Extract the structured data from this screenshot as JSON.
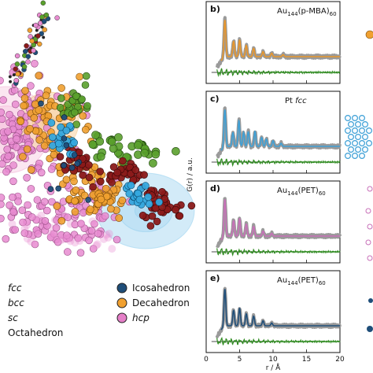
{
  "chart_data": [
    {
      "type": "scatter",
      "title": "",
      "legend": [
        {
          "label": "fcc",
          "italic": true,
          "color": ""
        },
        {
          "label": "bcc",
          "italic": true,
          "color": ""
        },
        {
          "label": "sc",
          "italic": true,
          "color": ""
        },
        {
          "label": "Octahedron",
          "italic": false,
          "color": ""
        },
        {
          "label": "Icosahedron",
          "italic": false,
          "color": "#1f4e79"
        },
        {
          "label": "Decahedron",
          "italic": false,
          "color": "#f0a030"
        },
        {
          "label": "hcp",
          "italic": true,
          "color": "#e57fc8"
        }
      ],
      "cluster_colors": {
        "pink": "#e88bd0",
        "orange": "#f0a030",
        "green": "#5aa02c",
        "darkred": "#8b1a1a",
        "blue": "#35a8de",
        "navy": "#1f4e79"
      }
    },
    {
      "type": "line",
      "panel": "b)",
      "annotation_main": "Au",
      "annotation_sub1": "144",
      "annotation_mid": "(p-MBA)",
      "annotation_sub2": "60",
      "fit_color": "#e8962b",
      "xlim": [
        0,
        20
      ],
      "peaks": [
        [
          2.8,
          1.0
        ],
        [
          4.1,
          0.45
        ],
        [
          5.0,
          0.52
        ],
        [
          6.0,
          0.38
        ],
        [
          7.1,
          0.3
        ],
        [
          8.5,
          0.2
        ],
        [
          9.8,
          0.15
        ],
        [
          11.5,
          0.1
        ]
      ]
    },
    {
      "type": "line",
      "panel": "c)",
      "annotation_main": "Pt ",
      "annotation_italic": "fcc",
      "fit_color": "#3ea0d6",
      "xlim": [
        0,
        20
      ],
      "peaks": [
        [
          2.8,
          1.0
        ],
        [
          4.0,
          0.4
        ],
        [
          4.9,
          0.8
        ],
        [
          5.6,
          0.45
        ],
        [
          6.3,
          0.5
        ],
        [
          7.3,
          0.55
        ],
        [
          8.3,
          0.35
        ],
        [
          9.0,
          0.3
        ],
        [
          10.0,
          0.25
        ],
        [
          11.2,
          0.15
        ]
      ]
    },
    {
      "type": "line",
      "panel": "d)",
      "annotation_main": "Au",
      "annotation_sub1": "144",
      "annotation_mid": "(PET)",
      "annotation_sub2": "60",
      "fit_color": "#c870b8",
      "xlim": [
        0,
        20
      ],
      "peaks": [
        [
          2.8,
          1.0
        ],
        [
          4.1,
          0.45
        ],
        [
          5.0,
          0.55
        ],
        [
          6.0,
          0.4
        ],
        [
          7.1,
          0.35
        ],
        [
          8.5,
          0.2
        ],
        [
          9.8,
          0.12
        ]
      ]
    },
    {
      "type": "line",
      "panel": "e)",
      "annotation_main": "Au",
      "annotation_sub1": "144",
      "annotation_mid": "(PET)",
      "annotation_sub2": "60",
      "fit_color": "#1f4e79",
      "xlim": [
        0,
        20
      ],
      "xticks": [
        "0",
        "5",
        "10",
        "15",
        "20"
      ],
      "xlabel": "r / Å",
      "peaks": [
        [
          2.8,
          1.0
        ],
        [
          4.1,
          0.45
        ],
        [
          5.0,
          0.55
        ],
        [
          6.0,
          0.4
        ],
        [
          7.1,
          0.35
        ],
        [
          8.5,
          0.2
        ],
        [
          9.8,
          0.12
        ]
      ]
    }
  ],
  "ylabel": "G(r) / a.u."
}
